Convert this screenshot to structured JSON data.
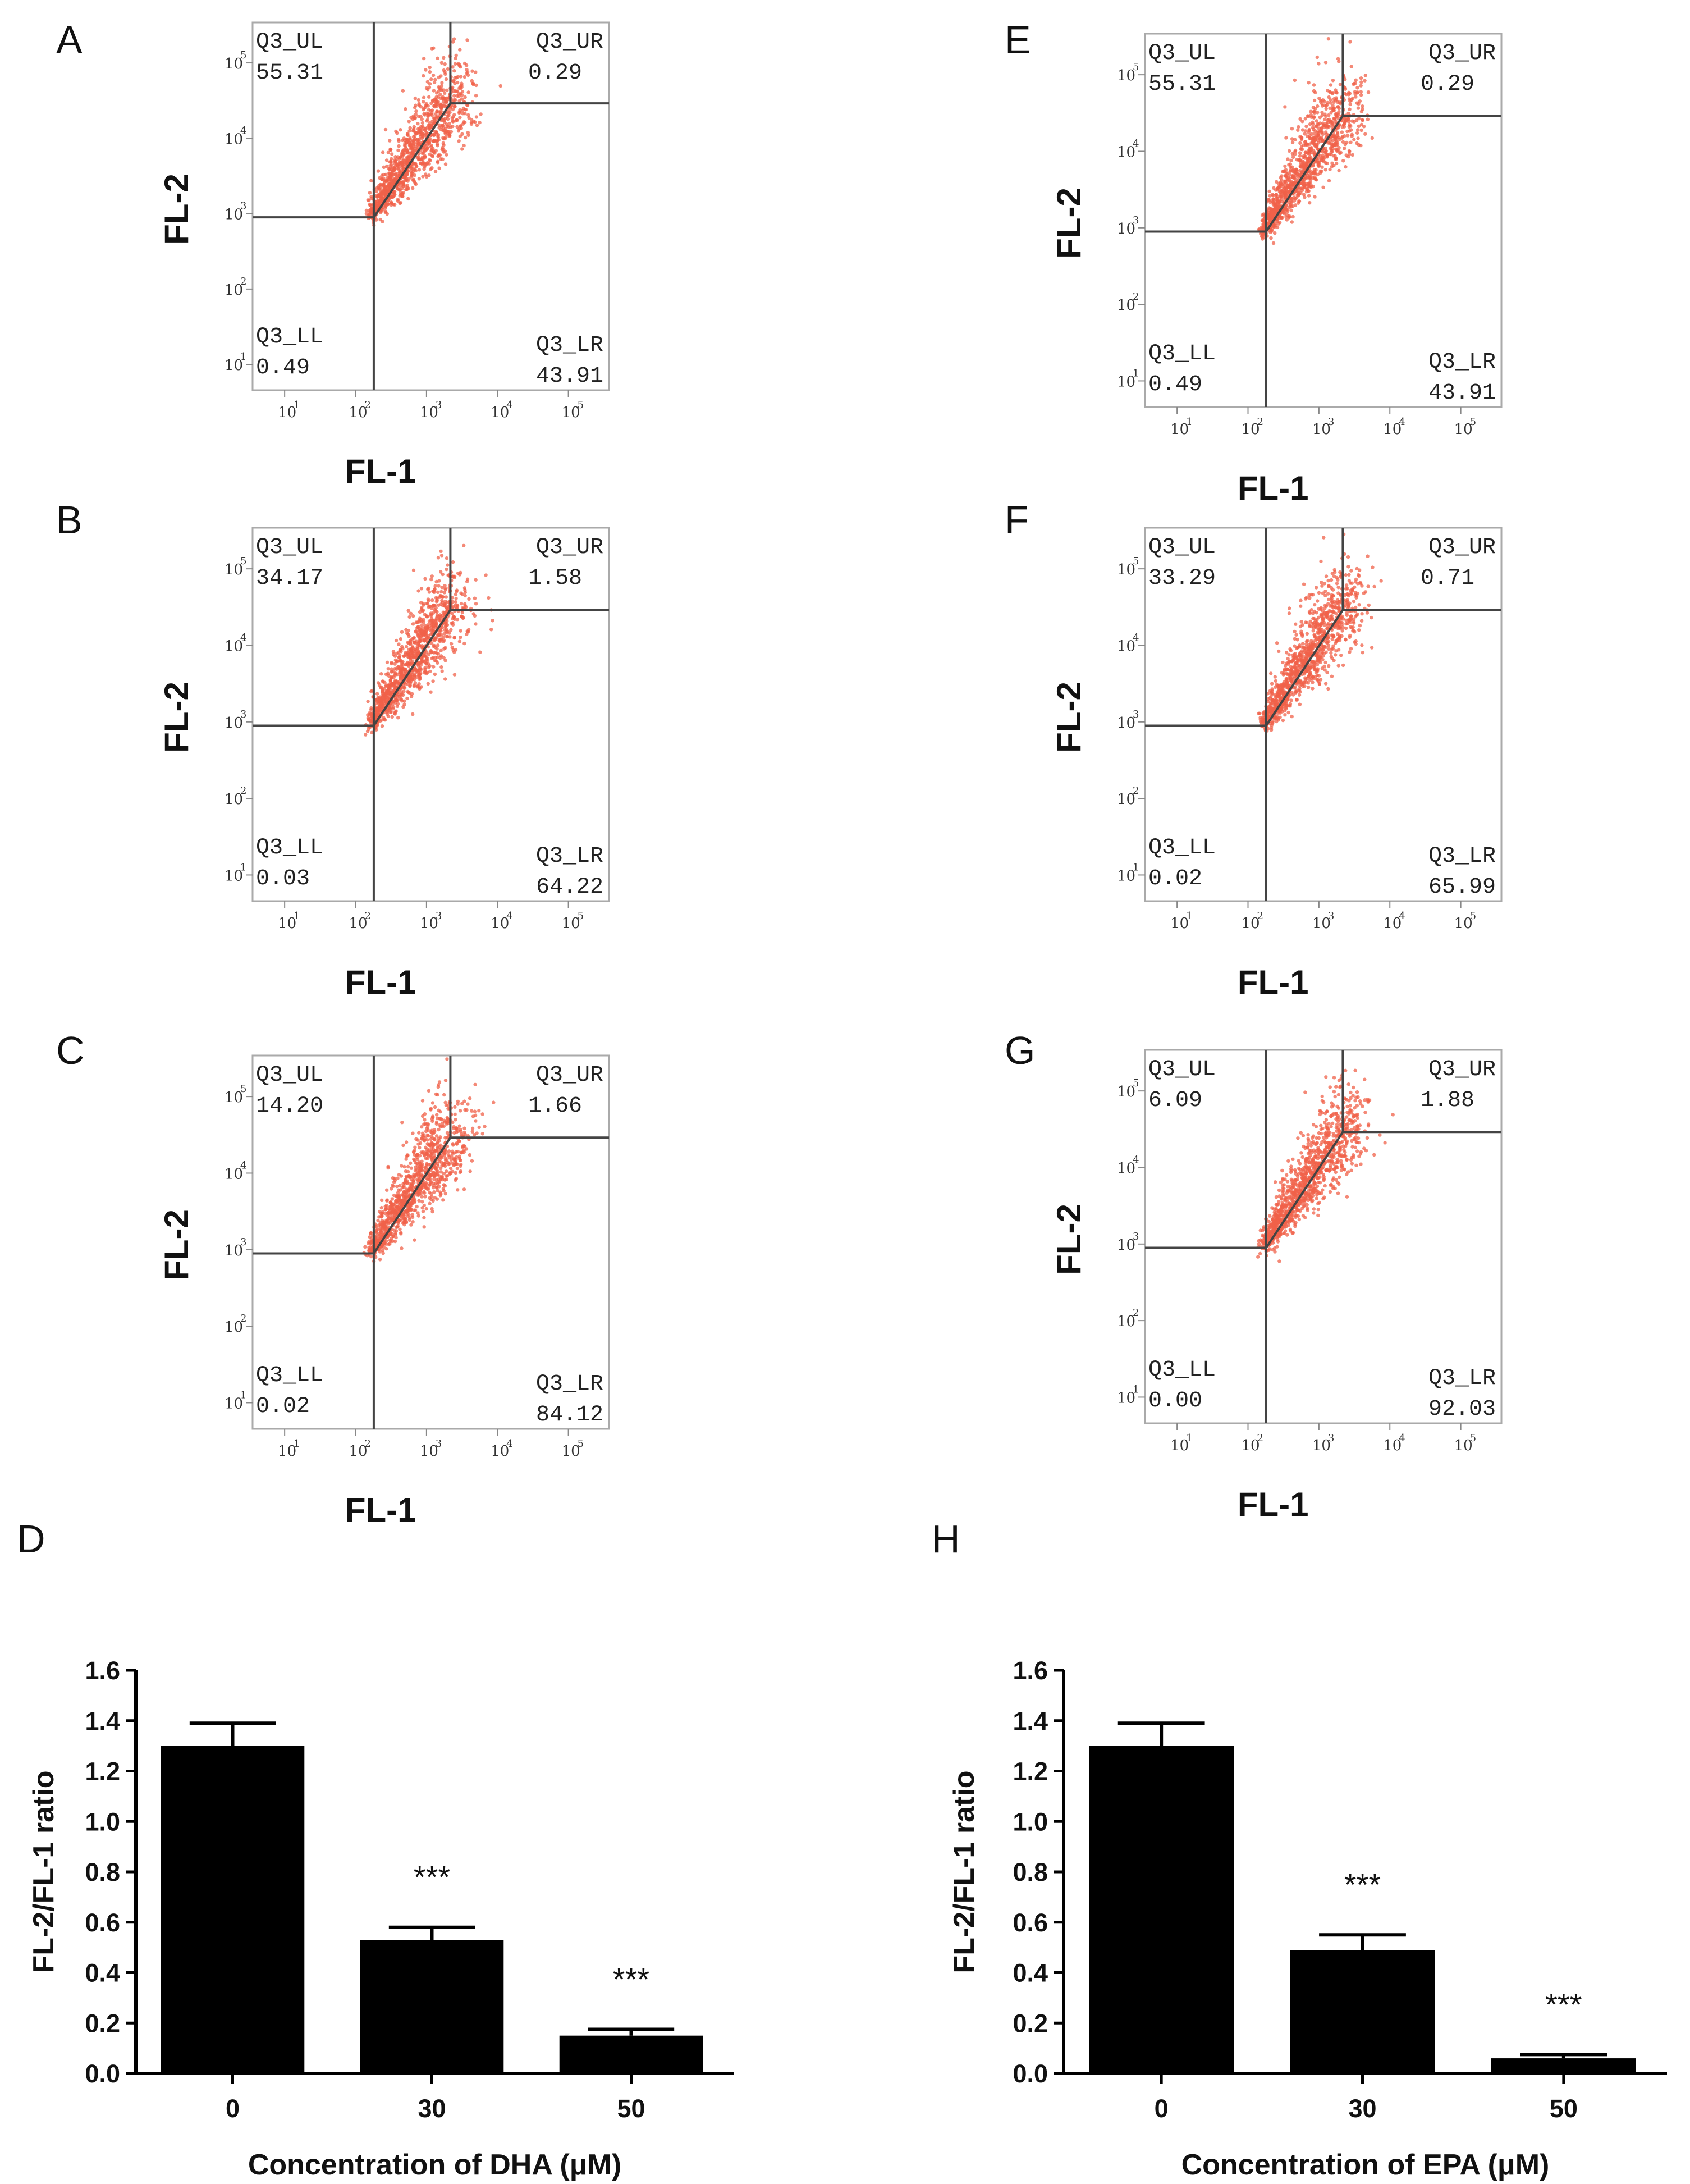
{
  "flow_panels": [
    {
      "letter": "A",
      "x_label": "FL-1",
      "y_label": "FL-2",
      "quadrants": {
        "UL": {
          "name": "Q3_UL",
          "value": "55.31"
        },
        "UR": {
          "name": "Q3_UR",
          "value": "0.29"
        },
        "LL": {
          "name": "Q3_LL",
          "value": "0.49"
        },
        "LR": {
          "name": "Q3_LR",
          "value": "43.91"
        }
      }
    },
    {
      "letter": "B",
      "x_label": "FL-1",
      "y_label": "FL-2",
      "quadrants": {
        "UL": {
          "name": "Q3_UL",
          "value": "34.17"
        },
        "UR": {
          "name": "Q3_UR",
          "value": "1.58"
        },
        "LL": {
          "name": "Q3_LL",
          "value": "0.03"
        },
        "LR": {
          "name": "Q3_LR",
          "value": "64.22"
        }
      }
    },
    {
      "letter": "C",
      "x_label": "FL-1",
      "y_label": "FL-2",
      "quadrants": {
        "UL": {
          "name": "Q3_UL",
          "value": "14.20"
        },
        "UR": {
          "name": "Q3_UR",
          "value": "1.66"
        },
        "LL": {
          "name": "Q3_LL",
          "value": "0.02"
        },
        "LR": {
          "name": "Q3_LR",
          "value": "84.12"
        }
      }
    },
    {
      "letter": "E",
      "x_label": "FL-1",
      "y_label": "FL-2",
      "quadrants": {
        "UL": {
          "name": "Q3_UL",
          "value": "55.31"
        },
        "UR": {
          "name": "Q3_UR",
          "value": "0.29"
        },
        "LL": {
          "name": "Q3_LL",
          "value": "0.49"
        },
        "LR": {
          "name": "Q3_LR",
          "value": "43.91"
        }
      }
    },
    {
      "letter": "F",
      "x_label": "FL-1",
      "y_label": "FL-2",
      "quadrants": {
        "UL": {
          "name": "Q3_UL",
          "value": "33.29"
        },
        "UR": {
          "name": "Q3_UR",
          "value": "0.71"
        },
        "LL": {
          "name": "Q3_LL",
          "value": "0.02"
        },
        "LR": {
          "name": "Q3_LR",
          "value": "65.99"
        }
      }
    },
    {
      "letter": "G",
      "x_label": "FL-1",
      "y_label": "FL-2",
      "quadrants": {
        "UL": {
          "name": "Q3_UL",
          "value": "6.09"
        },
        "UR": {
          "name": "Q3_UR",
          "value": "1.88"
        },
        "LL": {
          "name": "Q3_LL",
          "value": "0.00"
        },
        "LR": {
          "name": "Q3_LR",
          "value": "92.03"
        }
      }
    }
  ],
  "flow_axis": {
    "tick_exponents": [
      "1",
      "2",
      "3",
      "4",
      "5"
    ],
    "tick_base": "10"
  },
  "scatter_color": "#f0614a",
  "chart_data": [
    {
      "type": "bar",
      "panel": "D",
      "categories": [
        "0",
        "30",
        "50"
      ],
      "values": [
        1.3,
        0.53,
        0.15
      ],
      "errors": [
        0.09,
        0.05,
        0.025
      ],
      "significance": [
        "",
        "***",
        "***"
      ],
      "xlabel": "Concentration of DHA (μM)",
      "ylabel": "FL-2/FL-1 ratio",
      "ylim": [
        0,
        1.6
      ],
      "yticks": [
        "0.0",
        "0.2",
        "0.4",
        "0.6",
        "0.8",
        "1.0",
        "1.2",
        "1.4",
        "1.6"
      ]
    },
    {
      "type": "bar",
      "panel": "H",
      "categories": [
        "0",
        "30",
        "50"
      ],
      "values": [
        1.3,
        0.49,
        0.06
      ],
      "errors": [
        0.09,
        0.06,
        0.015
      ],
      "significance": [
        "",
        "***",
        "***"
      ],
      "xlabel": "Concentration of EPA (μM)",
      "ylabel": "FL-2/FL-1 ratio",
      "ylim": [
        0,
        1.6
      ],
      "yticks": [
        "0.0",
        "0.2",
        "0.4",
        "0.6",
        "0.8",
        "1.0",
        "1.2",
        "1.4",
        "1.6"
      ]
    }
  ]
}
